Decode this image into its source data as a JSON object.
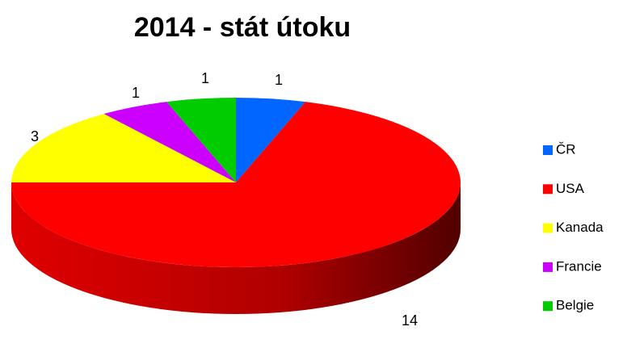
{
  "chart_data": {
    "type": "pie",
    "title": "2014 - stát útoku",
    "categories": [
      "ČR",
      "USA",
      "Kanada",
      "Francie",
      "Belgie"
    ],
    "values": [
      1,
      14,
      3,
      1,
      1
    ],
    "colors": [
      "#0066ff",
      "#ff0000",
      "#ffff00",
      "#cc00ff",
      "#00cc00"
    ],
    "legend": "right"
  }
}
